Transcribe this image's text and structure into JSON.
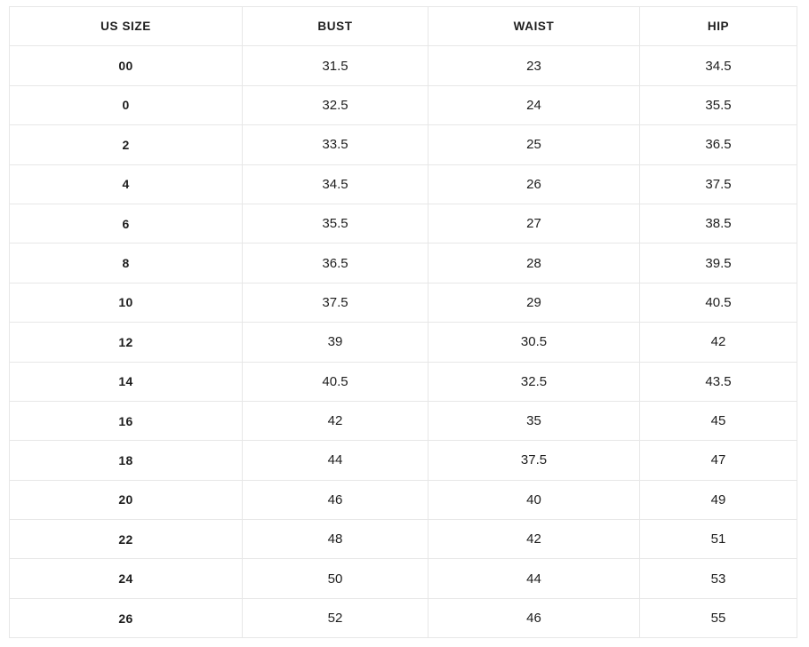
{
  "chart_data": {
    "type": "table",
    "columns": [
      "US SIZE",
      "BUST",
      "WAIST",
      "HIP"
    ],
    "rows": [
      [
        "00",
        31.5,
        23,
        34.5
      ],
      [
        "0",
        32.5,
        24,
        35.5
      ],
      [
        "2",
        33.5,
        25,
        36.5
      ],
      [
        "4",
        34.5,
        26,
        37.5
      ],
      [
        "6",
        35.5,
        27,
        38.5
      ],
      [
        "8",
        36.5,
        28,
        39.5
      ],
      [
        "10",
        37.5,
        29,
        40.5
      ],
      [
        "12",
        39,
        30.5,
        42
      ],
      [
        "14",
        40.5,
        32.5,
        43.5
      ],
      [
        "16",
        42,
        35,
        45
      ],
      [
        "18",
        44,
        37.5,
        47
      ],
      [
        "20",
        46,
        40,
        49
      ],
      [
        "22",
        48,
        42,
        51
      ],
      [
        "24",
        50,
        44,
        53
      ],
      [
        "26",
        52,
        46,
        55
      ]
    ],
    "layout": {
      "grid": true,
      "header_row": true,
      "bold_first_column": true,
      "text_align": "center"
    },
    "colors": {
      "text": "#1d1d1d",
      "border": "#e7e7e7",
      "background": "#ffffff"
    }
  }
}
